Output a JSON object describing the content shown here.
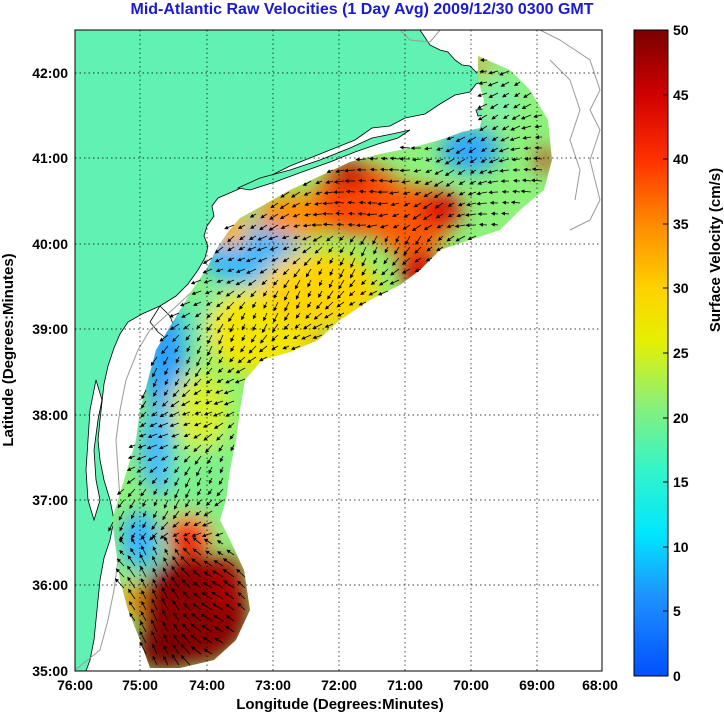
{
  "title": "Mid-Atlantic Raw Velocities (1 Day Avg) 2009/12/30 0300 GMT",
  "map": {
    "xlabel": "Longitude (Degrees:Minutes)",
    "ylabel": "Latitude (Degrees:Minutes)",
    "lon_range": [
      -76,
      -68
    ],
    "lat_range": [
      35,
      42.5
    ],
    "lon_ticks": [
      "76:00",
      "75:00",
      "74:00",
      "73:00",
      "72:00",
      "71:00",
      "70:00",
      "69:00",
      "68:00"
    ],
    "lat_ticks": [
      "35:00",
      "36:00",
      "37:00",
      "38:00",
      "39:00",
      "40:00",
      "41:00",
      "42:00"
    ],
    "land_color": "#5ff2b2",
    "grid": "dotted"
  },
  "colorbar": {
    "label": "Surface Velocity (cm/s)",
    "range": [
      0,
      50
    ],
    "ticks": [
      "0",
      "5",
      "10",
      "15",
      "20",
      "25",
      "30",
      "35",
      "40",
      "45",
      "50"
    ],
    "colormap": "jet"
  }
}
